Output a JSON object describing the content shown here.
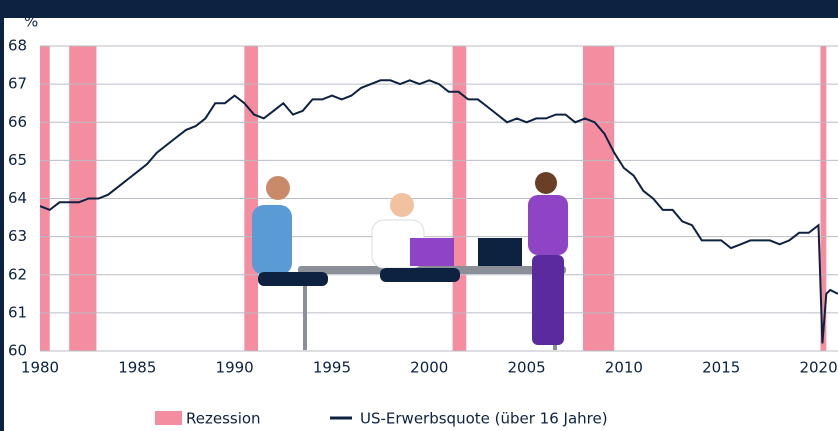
{
  "chart_data": {
    "type": "line",
    "y_unit": "%",
    "xlim": [
      1980,
      2021
    ],
    "xticks": [
      1980,
      1985,
      1990,
      1995,
      2000,
      2005,
      2010,
      2015,
      2020
    ],
    "ylim": [
      60,
      68
    ],
    "yticks": [
      60,
      61,
      62,
      63,
      64,
      65,
      66,
      67,
      68
    ],
    "grid": true,
    "bands": {
      "name": "Rezession",
      "color": "#f48da0",
      "ranges": [
        [
          1980.0,
          1980.5
        ],
        [
          1981.5,
          1982.9
        ],
        [
          1990.5,
          1991.2
        ],
        [
          2001.2,
          2001.9
        ],
        [
          2007.9,
          2009.5
        ],
        [
          2020.1,
          2020.4
        ]
      ]
    },
    "series": [
      {
        "name": "US-Erwerbsquote (über 16 Jahre)",
        "color": "#0d2240",
        "x": [
          1980,
          1980.5,
          1981,
          1981.5,
          1982,
          1982.5,
          1983,
          1983.5,
          1984,
          1984.5,
          1985,
          1985.5,
          1986,
          1986.5,
          1987,
          1987.5,
          1988,
          1988.5,
          1989,
          1989.5,
          1990,
          1990.5,
          1991,
          1991.5,
          1992,
          1992.5,
          1993,
          1993.5,
          1994,
          1994.5,
          1995,
          1995.5,
          1996,
          1996.5,
          1997,
          1997.5,
          1998,
          1998.5,
          1999,
          1999.5,
          2000,
          2000.5,
          2001,
          2001.5,
          2002,
          2002.5,
          2003,
          2003.5,
          2004,
          2004.5,
          2005,
          2005.5,
          2006,
          2006.5,
          2007,
          2007.5,
          2008,
          2008.5,
          2009,
          2009.5,
          2010,
          2010.5,
          2011,
          2011.5,
          2012,
          2012.5,
          2013,
          2013.5,
          2014,
          2014.5,
          2015,
          2015.5,
          2016,
          2016.5,
          2017,
          2017.5,
          2018,
          2018.5,
          2019,
          2019.5,
          2020,
          2020.2,
          2020.4,
          2020.6,
          2021
        ],
        "values": [
          63.8,
          63.7,
          63.9,
          63.9,
          63.9,
          64.0,
          64.0,
          64.1,
          64.3,
          64.5,
          64.7,
          64.9,
          65.2,
          65.4,
          65.6,
          65.8,
          65.9,
          66.1,
          66.5,
          66.5,
          66.7,
          66.5,
          66.2,
          66.1,
          66.3,
          66.5,
          66.2,
          66.3,
          66.6,
          66.6,
          66.7,
          66.6,
          66.7,
          66.9,
          67.0,
          67.1,
          67.1,
          67.0,
          67.1,
          67.0,
          67.1,
          67.0,
          66.8,
          66.8,
          66.6,
          66.6,
          66.4,
          66.2,
          66.0,
          66.1,
          66.0,
          66.1,
          66.1,
          66.2,
          66.2,
          66.0,
          66.1,
          66.0,
          65.7,
          65.2,
          64.8,
          64.6,
          64.2,
          64.0,
          63.7,
          63.7,
          63.4,
          63.3,
          62.9,
          62.9,
          62.9,
          62.7,
          62.8,
          62.9,
          62.9,
          62.9,
          62.8,
          62.9,
          63.1,
          63.1,
          63.3,
          60.2,
          61.5,
          61.6,
          61.5
        ]
      }
    ]
  }
}
